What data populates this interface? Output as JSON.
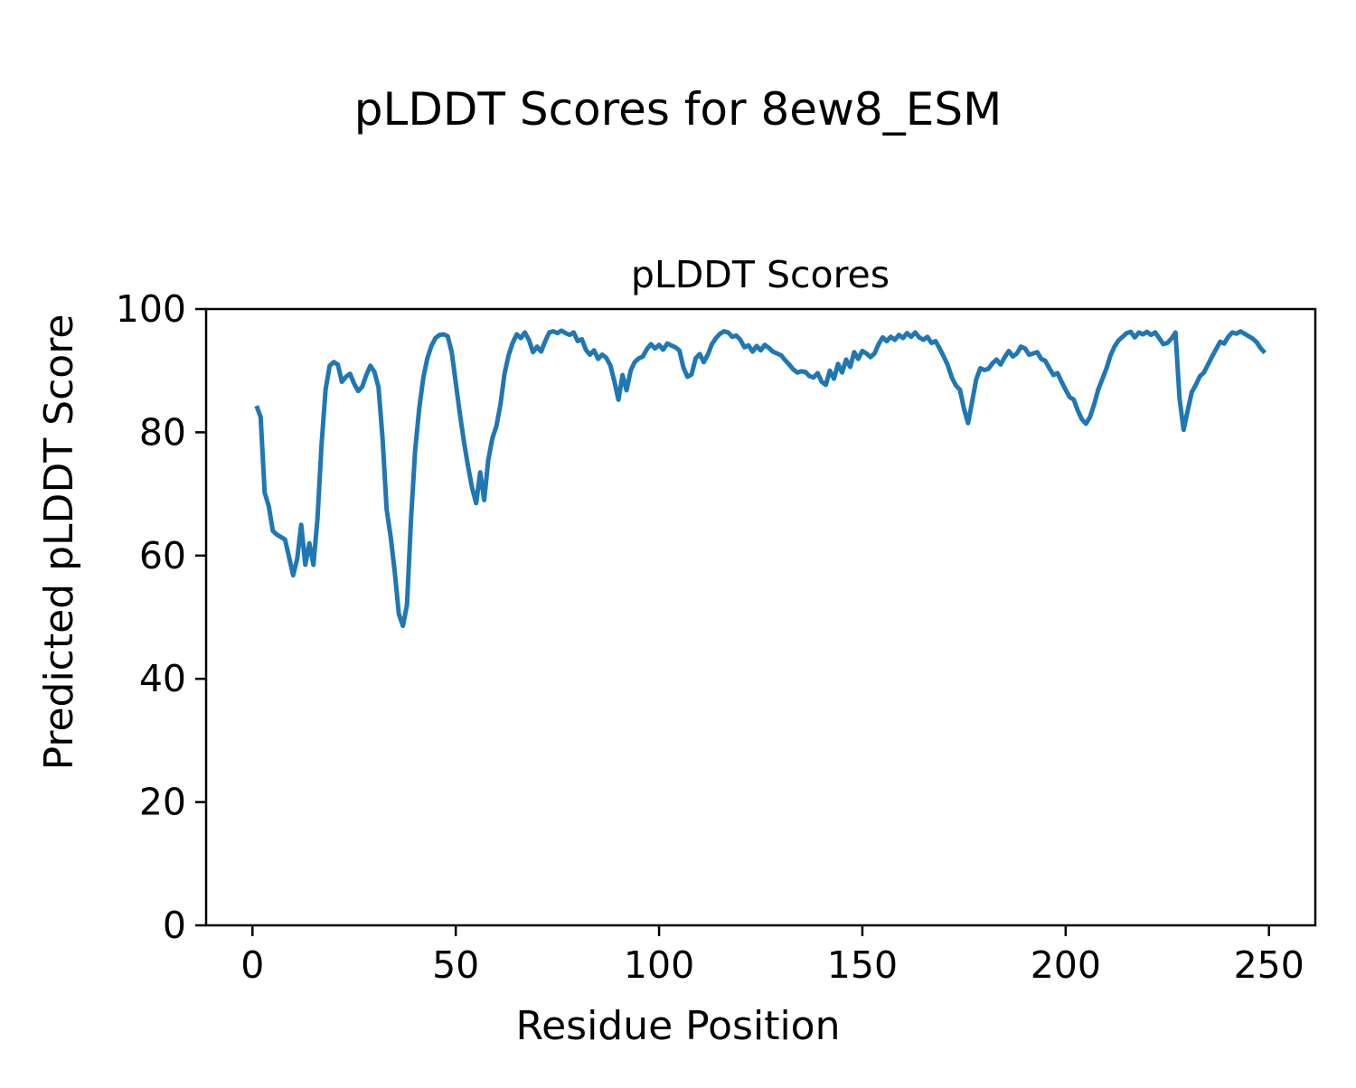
{
  "figure": {
    "suptitle": "pLDDT Scores for 8ew8_ESM",
    "background": "#ffffff"
  },
  "chart_data": {
    "type": "line",
    "title": "pLDDT Scores",
    "xlabel": "Residue Position",
    "ylabel": "Predicted pLDDT Score",
    "x_ticks": [
      0,
      50,
      100,
      150,
      200,
      250
    ],
    "y_ticks": [
      0,
      20,
      40,
      60,
      80,
      100
    ],
    "xlim": [
      -11.4,
      261.4
    ],
    "ylim": [
      0,
      100
    ],
    "grid": false,
    "legend": null,
    "line_color": "#1f77b4",
    "axis_color": "#000000",
    "series": [
      {
        "name": "pLDDT",
        "x_start": 1,
        "x_step": 1,
        "values": [
          84.3,
          82.5,
          70.2,
          68.0,
          64.0,
          63.4,
          63.0,
          62.6,
          59.7,
          56.8,
          59.5,
          65.0,
          58.5,
          62.0,
          58.5,
          66.0,
          78.0,
          87.0,
          90.8,
          91.4,
          91.0,
          88.2,
          89.0,
          89.5,
          87.9,
          86.7,
          87.4,
          89.3,
          90.8,
          89.8,
          87.3,
          79.0,
          67.5,
          63.0,
          57.3,
          50.5,
          48.6,
          52.0,
          66.0,
          77.0,
          83.8,
          88.8,
          92.0,
          94.0,
          95.3,
          95.8,
          95.9,
          95.6,
          93.0,
          88.0,
          83.0,
          78.5,
          74.5,
          71.0,
          68.5,
          73.5,
          69.0,
          75.5,
          79.0,
          81.0,
          84.5,
          89.5,
          92.5,
          94.5,
          95.9,
          95.3,
          96.2,
          95.0,
          93.0,
          93.9,
          93.1,
          94.8,
          96.2,
          96.4,
          96.1,
          96.5,
          96.1,
          95.8,
          96.2,
          94.8,
          95.1,
          93.4,
          92.6,
          93.3,
          91.9,
          92.6,
          92.1,
          90.9,
          88.3,
          85.3,
          89.3,
          86.8,
          90.0,
          91.4,
          92.0,
          92.3,
          93.5,
          94.3,
          93.6,
          94.2,
          93.4,
          94.4,
          94.1,
          93.8,
          93.3,
          90.5,
          89.0,
          89.4,
          92.0,
          92.7,
          91.4,
          92.6,
          94.3,
          95.3,
          96.0,
          96.4,
          96.2,
          95.5,
          95.7,
          95.0,
          93.8,
          94.1,
          93.1,
          94.0,
          93.3,
          94.2,
          93.7,
          93.1,
          92.8,
          92.5,
          91.7,
          91.0,
          90.2,
          89.7,
          89.9,
          89.8,
          89.1,
          88.9,
          89.6,
          88.2,
          87.7,
          90.0,
          88.7,
          91.1,
          89.7,
          91.8,
          90.6,
          93.0,
          91.9,
          93.2,
          92.8,
          92.2,
          92.8,
          94.3,
          95.4,
          94.8,
          95.5,
          95.0,
          95.8,
          95.3,
          96.1,
          95.5,
          96.2,
          95.4,
          95.0,
          95.5,
          94.5,
          94.8,
          93.6,
          92.3,
          90.9,
          88.9,
          87.6,
          86.9,
          83.8,
          81.5,
          85.0,
          88.6,
          90.4,
          90.1,
          90.3,
          91.2,
          91.8,
          91.0,
          92.2,
          93.2,
          92.3,
          92.8,
          93.9,
          93.6,
          92.6,
          92.8,
          93.0,
          91.9,
          91.6,
          90.4,
          89.3,
          89.6,
          88.2,
          86.9,
          85.7,
          85.3,
          83.5,
          82.1,
          81.4,
          82.5,
          84.5,
          86.9,
          88.6,
          90.3,
          92.4,
          93.9,
          94.9,
          95.5,
          96.1,
          96.3,
          95.4,
          96.2,
          95.9,
          96.3,
          95.8,
          96.2,
          95.3,
          94.3,
          94.5,
          95.2,
          96.2,
          85.5,
          80.4,
          83.5,
          86.5,
          87.7,
          89.1,
          89.7,
          91.0,
          92.3,
          93.5,
          94.7,
          94.4,
          95.5,
          96.2,
          96.0,
          96.4,
          96.0,
          95.6,
          95.2,
          94.6,
          93.6,
          92.9
        ]
      }
    ]
  }
}
